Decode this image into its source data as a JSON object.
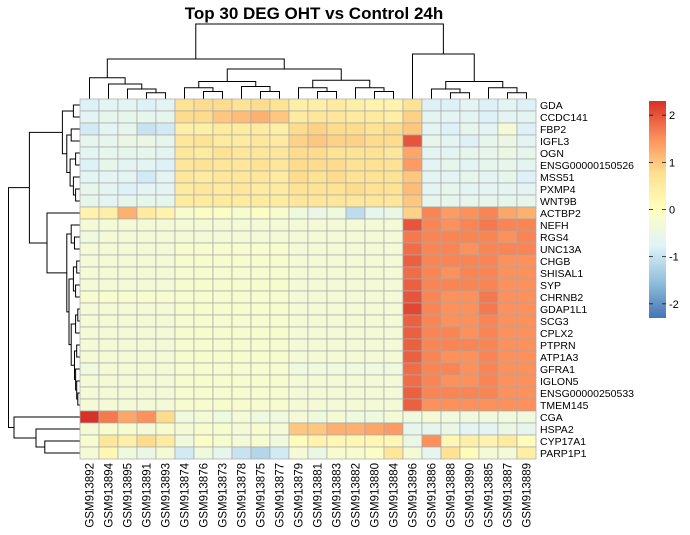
{
  "chart_data": {
    "type": "heatmap",
    "title": "Top 30 DEG OHT vs Control 24h",
    "rows": [
      "GDA",
      "CCDC141",
      "FBP2",
      "IGFL3",
      "OGN",
      "ENSG00000150526",
      "MSS51",
      "PXMP4",
      "WNT9B",
      "ACTBP2",
      "NEFH",
      "RGS4",
      "UNC13A",
      "CHGB",
      "SHISAL1",
      "SYP",
      "CHRNB2",
      "GDAP1L1",
      "SCG3",
      "CPLX2",
      "PTPRN",
      "ATP1A3",
      "GFRA1",
      "IGLON5",
      "ENSG00000250533",
      "TMEM145",
      "CGA",
      "HSPA2",
      "CYP17A1",
      "PARP1P1"
    ],
    "columns": [
      "GSM913892",
      "GSM913894",
      "GSM913895",
      "GSM913891",
      "GSM913893",
      "GSM913874",
      "GSM913876",
      "GSM913873",
      "GSM913878",
      "GSM913875",
      "GSM913877",
      "GSM913879",
      "GSM913881",
      "GSM913883",
      "GSM913882",
      "GSM913880",
      "GSM913884",
      "GSM913896",
      "GSM913886",
      "GSM913888",
      "GSM913890",
      "GSM913885",
      "GSM913887",
      "GSM913889"
    ],
    "values": [
      [
        -0.8,
        -0.7,
        -0.7,
        -0.8,
        -0.7,
        0.7,
        0.8,
        0.8,
        0.7,
        0.8,
        0.7,
        0.4,
        0.4,
        0.5,
        0.4,
        0.3,
        0.3,
        0.7,
        -0.8,
        -0.8,
        -0.7,
        -0.8,
        -0.7,
        -0.8
      ],
      [
        -0.7,
        -0.6,
        -0.6,
        -0.6,
        -0.6,
        0.8,
        0.8,
        1.0,
        1.1,
        1.2,
        1.0,
        0.5,
        0.6,
        0.6,
        0.5,
        0.5,
        0.4,
        0.9,
        -0.7,
        -0.7,
        -0.7,
        -0.8,
        -0.7,
        -0.7
      ],
      [
        -0.9,
        -0.7,
        -0.6,
        -1.0,
        -0.9,
        0.4,
        0.4,
        0.5,
        0.5,
        0.5,
        0.4,
        0.8,
        0.9,
        0.8,
        0.8,
        0.7,
        0.8,
        1.0,
        -0.7,
        -0.8,
        -0.6,
        -0.7,
        -0.3,
        -0.8
      ],
      [
        -0.6,
        -0.6,
        -0.5,
        -0.5,
        -0.6,
        0.6,
        0.7,
        0.5,
        0.5,
        0.6,
        0.5,
        0.9,
        1.0,
        0.9,
        0.9,
        0.8,
        0.8,
        2.0,
        -0.6,
        -0.7,
        -0.8,
        -0.6,
        -0.5,
        -0.7
      ],
      [
        -0.7,
        -0.6,
        -0.6,
        -0.6,
        -0.7,
        0.6,
        0.5,
        0.7,
        0.6,
        0.6,
        0.6,
        0.8,
        0.8,
        0.7,
        0.7,
        0.7,
        0.6,
        1.3,
        -0.7,
        -0.7,
        -0.6,
        -0.6,
        -0.5,
        -0.6
      ],
      [
        -0.8,
        -0.6,
        -0.7,
        -0.7,
        -0.8,
        0.6,
        0.7,
        0.6,
        0.6,
        0.7,
        0.6,
        0.8,
        0.8,
        0.8,
        0.7,
        0.7,
        0.7,
        1.4,
        -0.7,
        -0.6,
        -0.7,
        -0.6,
        -0.6,
        -0.7
      ],
      [
        -0.7,
        -0.7,
        -0.7,
        -0.9,
        -0.7,
        0.6,
        0.5,
        0.6,
        0.6,
        0.6,
        0.5,
        0.8,
        0.7,
        0.8,
        0.7,
        0.7,
        0.7,
        1.0,
        -0.7,
        -0.7,
        -0.6,
        -0.7,
        -0.6,
        -0.8
      ],
      [
        -0.6,
        -0.7,
        -0.8,
        -0.7,
        -0.7,
        0.5,
        0.6,
        0.5,
        0.6,
        0.5,
        0.5,
        0.7,
        0.7,
        0.7,
        0.8,
        0.7,
        0.7,
        1.1,
        -0.7,
        -0.6,
        -0.7,
        -0.7,
        -0.7,
        -0.7
      ],
      [
        -0.6,
        -0.7,
        -0.6,
        -0.6,
        -0.6,
        0.5,
        0.5,
        0.5,
        0.5,
        0.5,
        0.5,
        0.6,
        0.6,
        0.6,
        0.6,
        0.6,
        0.6,
        1.0,
        -0.6,
        -0.6,
        -0.6,
        -0.6,
        -0.6,
        -0.6
      ],
      [
        0.3,
        0.4,
        1.2,
        0.5,
        0.3,
        -0.2,
        -0.1,
        -0.1,
        -0.2,
        -0.1,
        -0.2,
        -0.4,
        -0.5,
        -0.4,
        -1.1,
        -0.6,
        -0.5,
        0.9,
        1.6,
        1.4,
        1.5,
        1.6,
        1.3,
        1.2
      ],
      [
        -0.3,
        -0.3,
        -0.3,
        -0.3,
        -0.3,
        -0.3,
        -0.3,
        -0.3,
        -0.3,
        -0.3,
        -0.3,
        -0.3,
        -0.3,
        -0.3,
        -0.3,
        -0.3,
        -0.3,
        2.0,
        1.6,
        1.5,
        1.6,
        1.7,
        1.6,
        1.6
      ],
      [
        -0.4,
        -0.3,
        -0.3,
        -0.3,
        -0.3,
        -0.3,
        -0.3,
        -0.3,
        -0.3,
        -0.3,
        -0.3,
        -0.3,
        -0.3,
        -0.3,
        -0.3,
        -0.3,
        -0.3,
        1.7,
        1.6,
        1.6,
        1.6,
        1.6,
        1.5,
        1.6
      ],
      [
        -0.3,
        -0.3,
        -0.3,
        -0.3,
        -0.3,
        -0.2,
        -0.2,
        -0.2,
        -0.2,
        -0.2,
        -0.2,
        -0.3,
        -0.3,
        -0.3,
        -0.3,
        -0.3,
        -0.3,
        1.8,
        1.6,
        1.6,
        1.5,
        1.6,
        1.6,
        1.6
      ],
      [
        -0.3,
        -0.3,
        -0.3,
        -0.3,
        -0.3,
        -0.2,
        -0.2,
        -0.2,
        -0.2,
        -0.2,
        -0.2,
        -0.3,
        -0.3,
        -0.3,
        -0.3,
        -0.3,
        -0.3,
        1.9,
        1.6,
        1.6,
        1.6,
        1.6,
        1.5,
        1.5
      ],
      [
        -0.3,
        -0.3,
        -0.3,
        -0.3,
        -0.3,
        -0.2,
        -0.2,
        -0.2,
        -0.2,
        -0.2,
        -0.2,
        -0.3,
        -0.3,
        -0.3,
        -0.3,
        -0.3,
        -0.3,
        1.8,
        1.6,
        1.5,
        1.6,
        1.6,
        1.5,
        1.5
      ],
      [
        -0.3,
        -0.3,
        -0.3,
        -0.3,
        -0.3,
        -0.2,
        -0.2,
        -0.2,
        -0.2,
        -0.2,
        -0.2,
        -0.3,
        -0.3,
        -0.3,
        -0.3,
        -0.3,
        -0.3,
        1.9,
        1.6,
        1.6,
        1.6,
        1.6,
        1.5,
        1.5
      ],
      [
        -0.2,
        -0.2,
        -0.2,
        -0.2,
        -0.2,
        -0.2,
        -0.2,
        -0.2,
        -0.2,
        -0.2,
        -0.2,
        -0.3,
        -0.3,
        -0.3,
        -0.3,
        -0.3,
        -0.3,
        2.0,
        1.6,
        1.5,
        1.5,
        1.7,
        1.5,
        1.5
      ],
      [
        -0.3,
        -0.3,
        -0.3,
        -0.3,
        -0.3,
        -0.2,
        -0.2,
        -0.2,
        -0.2,
        -0.2,
        -0.2,
        -0.3,
        -0.3,
        -0.3,
        -0.3,
        -0.3,
        -0.3,
        2.1,
        1.6,
        1.5,
        1.5,
        1.7,
        1.5,
        1.5
      ],
      [
        -0.3,
        -0.3,
        -0.3,
        -0.3,
        -0.3,
        -0.2,
        -0.2,
        -0.2,
        -0.2,
        -0.2,
        -0.2,
        -0.3,
        -0.3,
        -0.3,
        -0.3,
        -0.3,
        -0.3,
        1.9,
        1.6,
        1.5,
        1.5,
        1.6,
        1.5,
        1.5
      ],
      [
        -0.3,
        -0.3,
        -0.3,
        -0.3,
        -0.3,
        -0.2,
        -0.2,
        -0.2,
        -0.2,
        -0.2,
        -0.2,
        -0.3,
        -0.3,
        -0.3,
        -0.3,
        -0.3,
        -0.3,
        1.9,
        1.6,
        1.6,
        1.5,
        1.6,
        1.5,
        1.5
      ],
      [
        -0.3,
        -0.3,
        -0.3,
        -0.3,
        -0.3,
        -0.2,
        -0.2,
        -0.2,
        -0.2,
        -0.2,
        -0.2,
        -0.3,
        -0.3,
        -0.3,
        -0.3,
        -0.3,
        -0.3,
        1.9,
        1.6,
        1.6,
        1.6,
        1.6,
        1.5,
        1.5
      ],
      [
        -0.3,
        -0.3,
        -0.3,
        -0.3,
        -0.3,
        -0.2,
        -0.2,
        -0.2,
        -0.2,
        -0.2,
        -0.2,
        -0.3,
        -0.3,
        -0.3,
        -0.3,
        -0.3,
        -0.3,
        1.9,
        1.6,
        1.5,
        1.5,
        1.6,
        1.5,
        1.5
      ],
      [
        -0.4,
        -0.3,
        -0.3,
        -0.3,
        -0.3,
        -0.2,
        -0.2,
        -0.2,
        -0.2,
        -0.2,
        -0.2,
        -0.4,
        -0.4,
        -0.4,
        -0.4,
        -0.4,
        -0.4,
        1.8,
        1.6,
        1.6,
        1.5,
        1.6,
        1.5,
        1.5
      ],
      [
        -0.3,
        -0.3,
        -0.3,
        -0.3,
        -0.3,
        -0.2,
        -0.2,
        -0.2,
        -0.2,
        -0.2,
        -0.2,
        -0.3,
        -0.3,
        -0.3,
        -0.3,
        -0.3,
        -0.3,
        1.8,
        1.6,
        1.5,
        1.5,
        1.6,
        1.5,
        1.5
      ],
      [
        -0.3,
        -0.3,
        -0.3,
        -0.3,
        -0.3,
        -0.2,
        -0.2,
        -0.2,
        -0.2,
        -0.2,
        -0.2,
        -0.3,
        -0.3,
        -0.3,
        -0.3,
        -0.3,
        -0.3,
        1.9,
        1.6,
        1.6,
        1.6,
        1.6,
        1.5,
        1.5
      ],
      [
        -0.3,
        -0.3,
        -0.3,
        -0.3,
        -0.3,
        -0.2,
        -0.2,
        -0.2,
        -0.2,
        -0.2,
        -0.2,
        -0.3,
        -0.3,
        -0.3,
        -0.3,
        -0.3,
        -0.3,
        1.9,
        1.5,
        1.5,
        1.5,
        1.5,
        1.5,
        1.5
      ],
      [
        2.3,
        1.7,
        1.3,
        1.5,
        0.8,
        -0.4,
        -0.3,
        -0.4,
        -0.3,
        -0.4,
        -0.4,
        -0.3,
        -0.4,
        -0.3,
        -0.4,
        -0.4,
        -0.3,
        -0.4,
        -0.3,
        -0.4,
        -0.4,
        -0.4,
        -0.4,
        -0.4
      ],
      [
        -0.3,
        -0.2,
        -0.2,
        -0.3,
        -0.2,
        -0.3,
        -0.2,
        -0.2,
        -0.3,
        -0.2,
        -0.3,
        1.0,
        1.0,
        1.2,
        1.2,
        1.3,
        1.4,
        -0.6,
        -0.6,
        -0.5,
        -0.7,
        -0.7,
        -0.5,
        -0.6
      ],
      [
        -0.2,
        0.6,
        0.4,
        0.8,
        0.5,
        -0.4,
        -0.1,
        -0.2,
        -0.3,
        -0.2,
        -0.4,
        0.1,
        0.3,
        0.2,
        0.2,
        0.2,
        0.2,
        -0.5,
        1.5,
        0.2,
        0.4,
        0.3,
        0.5,
        0.1
      ],
      [
        -0.3,
        0.2,
        -0.4,
        -0.5,
        -0.3,
        -0.9,
        -0.4,
        -0.6,
        -1.0,
        -1.2,
        -0.9,
        -0.3,
        -0.5,
        -0.2,
        -0.2,
        -0.1,
        0.6,
        -0.3,
        -0.6,
        0.7,
        0.1,
        -0.3,
        -0.3,
        0.4
      ]
    ],
    "color_scale": [
      "#4575b4",
      "#91bfdb",
      "#e0f3f8",
      "#ffffbf",
      "#fee090",
      "#fc8d59",
      "#d73027"
    ],
    "legend_ticks": [
      -2,
      -1,
      0,
      1,
      2
    ],
    "value_range": [
      -2.3,
      2.3
    ],
    "legend_placement": "right"
  }
}
